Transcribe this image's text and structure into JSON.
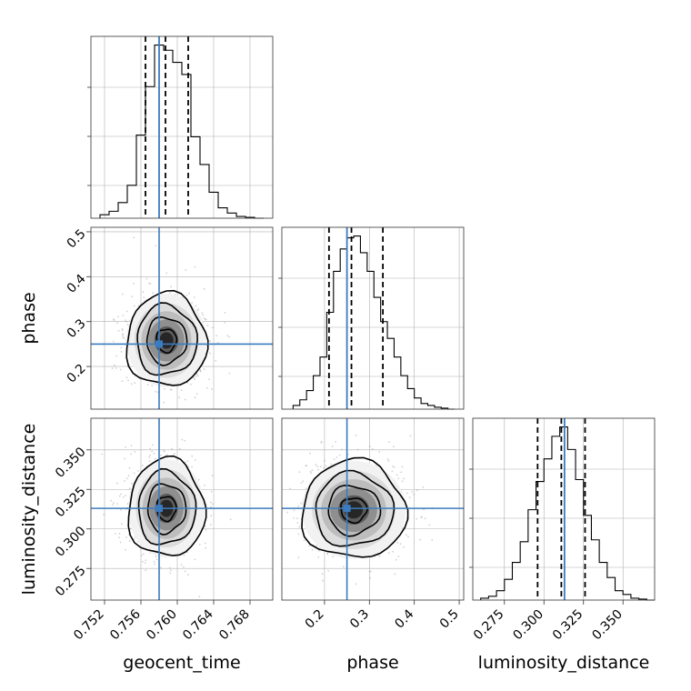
{
  "colors": {
    "truth": "#3b7bbf",
    "hist": "#000000",
    "grid": "#b0b0b0",
    "scatter": "#9a9a9a"
  },
  "chart_data": {
    "type": "corner",
    "parameters": [
      "geocent_time",
      "phase",
      "luminosity_distance"
    ],
    "truths": {
      "geocent_time": 0.758,
      "phase": 0.25,
      "luminosity_distance": 0.313
    },
    "quantiles": {
      "geocent_time": [
        0.7565,
        0.7587,
        0.7612
      ],
      "phase": [
        0.21,
        0.26,
        0.33
      ],
      "luminosity_distance": [
        0.296,
        0.311,
        0.326
      ]
    },
    "ranges": {
      "geocent_time": [
        0.7505,
        0.7705
      ],
      "phase": [
        0.105,
        0.51
      ],
      "luminosity_distance": [
        0.255,
        0.37
      ]
    },
    "ticks": {
      "geocent_time": [
        "0.752",
        "0.756",
        "0.760",
        "0.764",
        "0.768"
      ],
      "phase_x": [
        "0.2",
        "0.3",
        "0.4",
        "0.5"
      ],
      "phase_y": [
        "0.2",
        "0.3",
        "0.4",
        "0.5"
      ],
      "luminosity_distance_x": [
        "0.275",
        "0.300",
        "0.325",
        "0.350"
      ],
      "luminosity_distance_y": [
        "0.275",
        "0.300",
        "0.325",
        "0.350"
      ]
    },
    "axis_labels": {
      "x": [
        "geocent_time",
        "phase",
        "luminosity_distance"
      ],
      "y": [
        "phase",
        "luminosity_distance"
      ]
    },
    "histograms": {
      "geocent_time": {
        "edges": [
          0.7515,
          0.7525,
          0.7535,
          0.7545,
          0.7555,
          0.7565,
          0.7575,
          0.7585,
          0.7595,
          0.7605,
          0.7615,
          0.7625,
          0.7635,
          0.7645,
          0.7655,
          0.7665,
          0.7675,
          0.7685,
          0.7695
        ],
        "counts": [
          2,
          4,
          9,
          19,
          48,
          76,
          100,
          97,
          90,
          83,
          47,
          31,
          15,
          6,
          3,
          1,
          0.5,
          0
        ]
      },
      "phase": {
        "edges": [
          0.13,
          0.145,
          0.16,
          0.175,
          0.19,
          0.205,
          0.22,
          0.235,
          0.25,
          0.265,
          0.28,
          0.295,
          0.31,
          0.325,
          0.34,
          0.355,
          0.37,
          0.385,
          0.4,
          0.415,
          0.43,
          0.445,
          0.46,
          0.475,
          0.49
        ],
        "counts": [
          2,
          5,
          10,
          18,
          28,
          52,
          74,
          86,
          92,
          93,
          84,
          74,
          60,
          47,
          38,
          28,
          18,
          11,
          6,
          3,
          2,
          1,
          0.5,
          0
        ]
      },
      "luminosity_distance": {
        "edges": [
          0.26,
          0.265,
          0.27,
          0.275,
          0.28,
          0.285,
          0.29,
          0.295,
          0.3,
          0.305,
          0.31,
          0.315,
          0.32,
          0.325,
          0.33,
          0.335,
          0.34,
          0.345,
          0.35,
          0.355,
          0.36,
          0.365,
          0.37
        ],
        "counts": [
          1,
          2,
          5,
          11,
          20,
          31,
          48,
          63,
          75,
          87,
          92,
          80,
          64,
          45,
          32,
          20,
          12,
          5,
          3,
          1,
          0.5,
          0
        ]
      }
    },
    "contours": {
      "phase_vs_geocent_time": {
        "center": [
          0.7588,
          0.258
        ],
        "sigma": [
          0.0022,
          0.052
        ]
      },
      "luminosity_distance_vs_geocent_time": {
        "center": [
          0.7588,
          0.313
        ],
        "sigma": [
          0.0021,
          0.0155
        ]
      },
      "luminosity_distance_vs_phase": {
        "center": [
          0.265,
          0.312
        ],
        "sigma": [
          0.058,
          0.0155
        ]
      }
    },
    "contour_levels_sigma": [
      0.5,
      1.0,
      1.5,
      2.0
    ]
  }
}
